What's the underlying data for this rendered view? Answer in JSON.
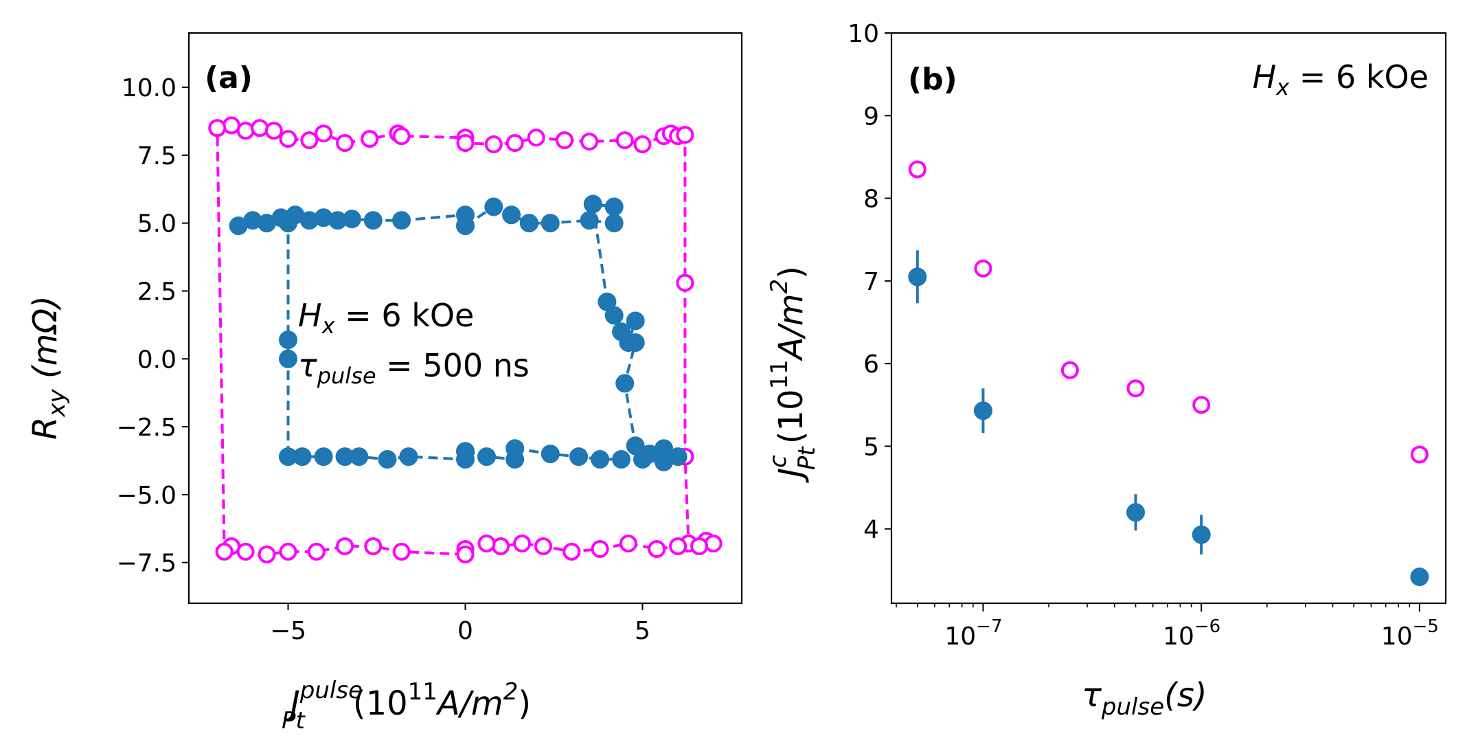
{
  "chart_data": [
    {
      "panel": "(a)",
      "type": "line",
      "xlim": [
        -7.8,
        7.8
      ],
      "ylim": [
        -9.0,
        12.0
      ],
      "xticks": [
        -5,
        0,
        5
      ],
      "xtick_labels": [
        "−5",
        "0",
        "5"
      ],
      "yticks": [
        -7.5,
        -5.0,
        -2.5,
        0.0,
        2.5,
        5.0,
        7.5,
        10.0
      ],
      "ytick_labels": [
        "−7.5",
        "−5.0",
        "−2.5",
        "0.0",
        "2.5",
        "5.0",
        "7.5",
        "10.0"
      ],
      "xlabel_main": "J",
      "xlabel_sup": "pulse",
      "xlabel_sub": "Pt",
      "xlabel_rest": "(10",
      "xlabel_exp": "11",
      "xlabel_unit": "A/m",
      "xlabel_unit_exp": "2",
      "xlabel_close": ")",
      "ylabel_main": "R",
      "ylabel_sub": "xy",
      "ylabel_rest": " (mΩ)",
      "annotation_line1_main": "H",
      "annotation_line1_sub": "x",
      "annotation_line1_rest": " = 6 kOe",
      "annotation_line2_main": "τ",
      "annotation_line2_sub": "pulse",
      "annotation_line2_rest": " = 500 ns",
      "series": [
        {
          "name": "magenta open loop",
          "color": "#ff00ff",
          "marker": "open-circle",
          "linestyle": "dashed",
          "points": [
            [
              -7.0,
              8.5
            ],
            [
              -6.6,
              8.6
            ],
            [
              -6.2,
              8.4
            ],
            [
              -5.8,
              8.5
            ],
            [
              -5.4,
              8.4
            ],
            [
              -5.0,
              8.1
            ],
            [
              -4.4,
              8.05
            ],
            [
              -4.0,
              8.3
            ],
            [
              -3.4,
              7.95
            ],
            [
              -2.7,
              8.1
            ],
            [
              -1.9,
              8.3
            ],
            [
              -1.8,
              8.2
            ],
            [
              0.0,
              8.15
            ],
            [
              0.0,
              7.95
            ],
            [
              0.8,
              7.9
            ],
            [
              1.4,
              7.95
            ],
            [
              2.0,
              8.15
            ],
            [
              2.8,
              8.05
            ],
            [
              3.5,
              8.0
            ],
            [
              4.5,
              8.05
            ],
            [
              5.0,
              7.9
            ],
            [
              5.6,
              8.2
            ],
            [
              5.8,
              8.3
            ],
            [
              6.0,
              8.2
            ],
            [
              6.2,
              8.25
            ],
            [
              6.2,
              2.8
            ],
            [
              6.2,
              -3.6
            ],
            [
              6.3,
              -6.8
            ],
            [
              6.8,
              -6.7
            ],
            [
              7.0,
              -6.8
            ],
            [
              6.6,
              -6.9
            ],
            [
              6.0,
              -6.9
            ],
            [
              5.4,
              -7.0
            ],
            [
              4.6,
              -6.8
            ],
            [
              3.8,
              -7.0
            ],
            [
              3.0,
              -7.1
            ],
            [
              2.2,
              -6.9
            ],
            [
              1.6,
              -6.8
            ],
            [
              1.0,
              -6.9
            ],
            [
              0.6,
              -6.8
            ],
            [
              0.0,
              -7.0
            ],
            [
              0.0,
              -7.2
            ],
            [
              -1.8,
              -7.1
            ],
            [
              -2.6,
              -6.9
            ],
            [
              -3.4,
              -6.9
            ],
            [
              -4.2,
              -7.1
            ],
            [
              -5.0,
              -7.1
            ],
            [
              -5.6,
              -7.2
            ],
            [
              -6.2,
              -7.1
            ],
            [
              -6.6,
              -6.9
            ],
            [
              -6.8,
              -7.1
            ],
            [
              -7.0,
              8.5
            ]
          ]
        },
        {
          "name": "blue filled loop",
          "color": "#1f77b4",
          "marker": "filled-circle",
          "linestyle": "dashed",
          "points": [
            [
              -6.4,
              4.9
            ],
            [
              -6.0,
              5.1
            ],
            [
              -5.6,
              5.0
            ],
            [
              -5.2,
              5.2
            ],
            [
              -4.8,
              5.3
            ],
            [
              -4.4,
              5.1
            ],
            [
              -4.0,
              5.2
            ],
            [
              -3.6,
              5.1
            ],
            [
              -3.2,
              5.15
            ],
            [
              -2.6,
              5.1
            ],
            [
              -1.8,
              5.1
            ],
            [
              0.0,
              5.3
            ],
            [
              0.0,
              4.9
            ],
            [
              0.8,
              5.6
            ],
            [
              1.3,
              5.3
            ],
            [
              1.8,
              5.0
            ],
            [
              2.4,
              5.0
            ],
            [
              3.5,
              5.1
            ],
            [
              4.2,
              5.0
            ],
            [
              4.2,
              5.6
            ],
            [
              3.6,
              5.7
            ],
            [
              4.0,
              2.1
            ],
            [
              4.2,
              1.6
            ],
            [
              4.4,
              1.0
            ],
            [
              4.6,
              0.6
            ],
            [
              4.8,
              1.4
            ],
            [
              4.8,
              0.6
            ],
            [
              4.5,
              -0.9
            ],
            [
              4.8,
              -3.2
            ],
            [
              5.2,
              -3.5
            ],
            [
              5.6,
              -3.3
            ],
            [
              6.0,
              -3.6
            ],
            [
              5.6,
              -3.8
            ],
            [
              5.0,
              -3.7
            ],
            [
              4.4,
              -3.7
            ],
            [
              3.8,
              -3.7
            ],
            [
              3.2,
              -3.6
            ],
            [
              2.4,
              -3.5
            ],
            [
              1.4,
              -3.3
            ],
            [
              1.4,
              -3.7
            ],
            [
              0.6,
              -3.6
            ],
            [
              0.0,
              -3.4
            ],
            [
              0.0,
              -3.7
            ],
            [
              -1.6,
              -3.6
            ],
            [
              -2.2,
              -3.7
            ],
            [
              -3.0,
              -3.6
            ],
            [
              -3.4,
              -3.6
            ],
            [
              -4.0,
              -3.6
            ],
            [
              -4.6,
              -3.6
            ],
            [
              -5.0,
              -3.6
            ],
            [
              -5.0,
              0.0
            ],
            [
              -5.0,
              0.7
            ],
            [
              -5.0,
              5.0
            ]
          ]
        }
      ]
    },
    {
      "panel": "(b)",
      "type": "scatter",
      "x_scale": "log",
      "xlim_log10": [
        -7.42,
        -4.88
      ],
      "ylim": [
        3.1,
        10.0
      ],
      "xticks_log10": [
        -7,
        -6,
        -5
      ],
      "xtick_base": "10",
      "xtick_exps": [
        "−7",
        "−6",
        "−5"
      ],
      "yticks": [
        4,
        5,
        6,
        7,
        8,
        9,
        10
      ],
      "ytick_labels": [
        "4",
        "5",
        "6",
        "7",
        "8",
        "9",
        "10"
      ],
      "xlabel_main": "τ",
      "xlabel_sub": "pulse",
      "xlabel_rest": "(s)",
      "ylabel_main": "J",
      "ylabel_sup": "c",
      "ylabel_sub": "Pt",
      "ylabel_rest": "(10",
      "ylabel_exp": "11",
      "ylabel_unit": "A/m",
      "ylabel_unit_exp": "2",
      "ylabel_close": ")",
      "annotation_main": "H",
      "annotation_sub": "x",
      "annotation_rest": " = 6 kOe",
      "series": [
        {
          "name": "magenta open",
          "color": "#ff00ff",
          "marker": "open-circle",
          "x": [
            5e-08,
            1e-07,
            2.5e-07,
            5e-07,
            1e-06,
            1e-05
          ],
          "y": [
            8.35,
            7.15,
            5.92,
            5.7,
            5.5,
            4.9
          ],
          "yerr": [
            0,
            0,
            0,
            0,
            0,
            0
          ]
        },
        {
          "name": "blue filled",
          "color": "#1f77b4",
          "marker": "filled-circle",
          "x": [
            5e-08,
            1e-07,
            5e-07,
            1e-06,
            1e-05
          ],
          "y": [
            7.05,
            5.43,
            4.2,
            3.93,
            3.42
          ],
          "yerr": [
            0.32,
            0.27,
            0.22,
            0.24,
            0.0
          ]
        }
      ]
    }
  ]
}
